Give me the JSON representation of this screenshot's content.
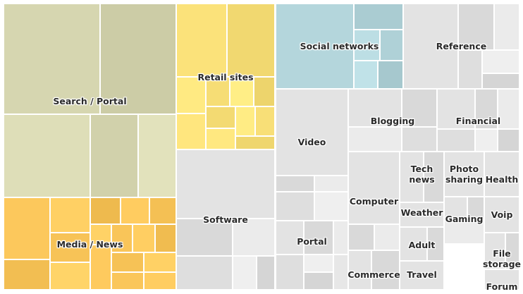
{
  "chart_data": {
    "type": "treemap",
    "title": "",
    "groups": [
      {
        "name": "Search / Portal",
        "color": "#d6d6b0",
        "value": 90
      },
      {
        "name": "Media / News",
        "color": "#fcc85c",
        "value": 52
      },
      {
        "name": "Retail sites",
        "color": "#fbe27a",
        "value": 42
      },
      {
        "name": "Software",
        "color": "#e3e3e3",
        "value": 48
      },
      {
        "name": "Social networks",
        "color": "#b4d6dc",
        "value": 32
      },
      {
        "name": "Reference",
        "color": "#e3e3e3",
        "value": 28
      },
      {
        "name": "Video",
        "color": "#e3e3e3",
        "value": 24
      },
      {
        "name": "Portal",
        "color": "#e3e3e3",
        "value": 18
      },
      {
        "name": "Blogging",
        "color": "#e3e3e3",
        "value": 16
      },
      {
        "name": "Financial",
        "color": "#e3e3e3",
        "value": 14
      },
      {
        "name": "Computer",
        "color": "#e3e3e3",
        "value": 11
      },
      {
        "name": "Commerce",
        "color": "#e3e3e3",
        "value": 7
      },
      {
        "name": "Tech news",
        "color": "#e3e3e3",
        "value": 4
      },
      {
        "name": "Weather",
        "color": "#e3e3e3",
        "value": 4
      },
      {
        "name": "Adult",
        "color": "#e3e3e3",
        "value": 4
      },
      {
        "name": "Travel",
        "color": "#e3e3e3",
        "value": 4
      },
      {
        "name": "Photo sharing",
        "color": "#e3e3e3",
        "value": 4
      },
      {
        "name": "Gaming",
        "color": "#e3e3e3",
        "value": 4
      },
      {
        "name": "Health",
        "color": "#e3e3e3",
        "value": 2
      },
      {
        "name": "Voip",
        "color": "#e3e3e3",
        "value": 3
      },
      {
        "name": "File storage",
        "color": "#e3e3e3",
        "value": 2
      },
      {
        "name": "Forum",
        "color": "#e3e3e3",
        "value": 1
      }
    ]
  }
}
